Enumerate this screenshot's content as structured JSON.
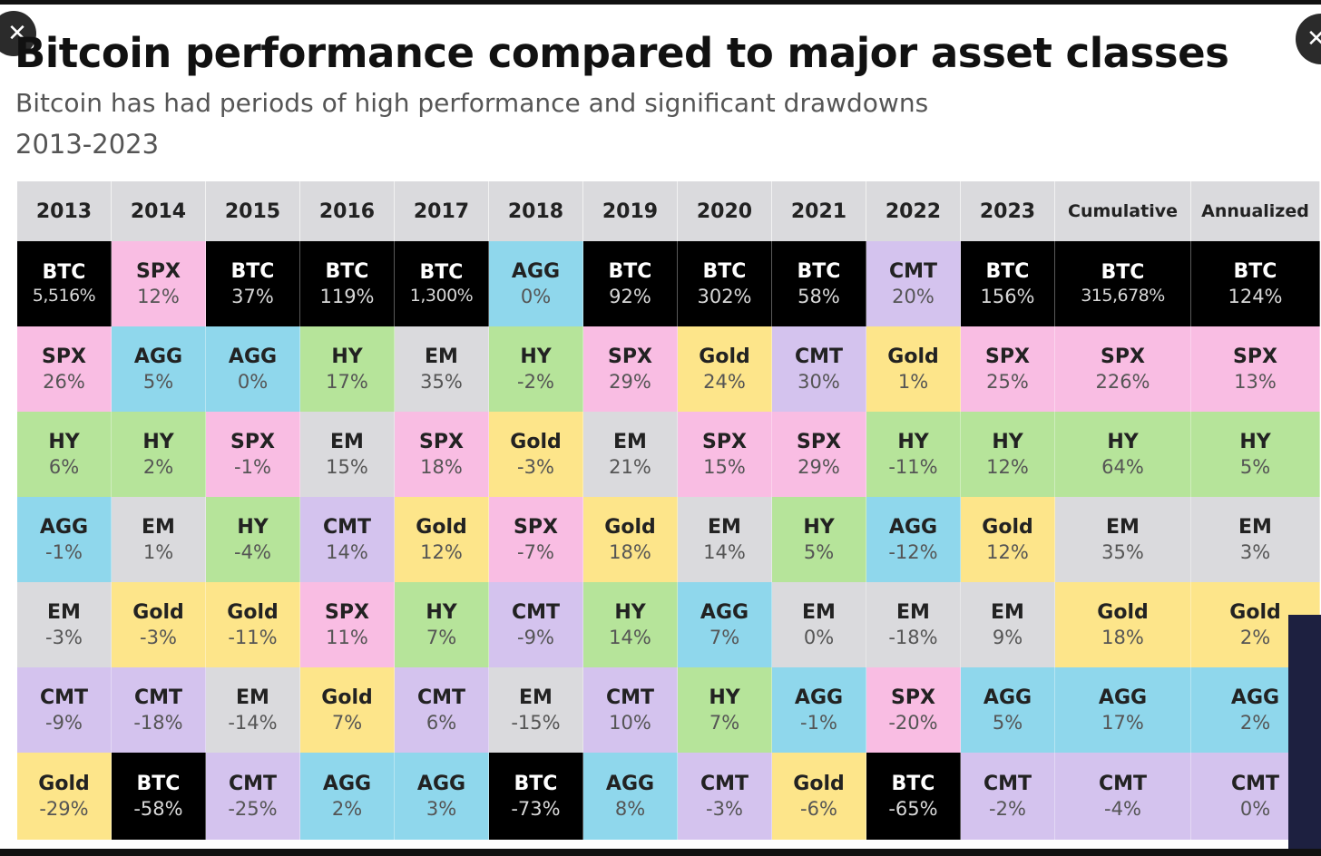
{
  "title": "Bitcoin performance compared to major asset classes",
  "subtitle": "Bitcoin has had periods of high performance and significant drawdowns",
  "date_range": "2013-2023",
  "close_glyph": "✕",
  "colors": {
    "BTC": "#000000",
    "SPX": "#f9bde3",
    "AGG": "#8fd7ec",
    "HY": "#b6e49a",
    "EM": "#dadadd",
    "CMT": "#d4c3ee",
    "Gold": "#fde58a",
    "header": "#dadadd"
  },
  "chart_data": {
    "type": "table",
    "columns": [
      "2013",
      "2014",
      "2015",
      "2016",
      "2017",
      "2018",
      "2019",
      "2020",
      "2021",
      "2022",
      "2023",
      "Cumulative",
      "Annualized"
    ],
    "ranked_cells": [
      [
        {
          "asset": "BTC",
          "return": "5,516%"
        },
        {
          "asset": "SPX",
          "return": "26%"
        },
        {
          "asset": "HY",
          "return": "6%"
        },
        {
          "asset": "AGG",
          "return": "-1%"
        },
        {
          "asset": "EM",
          "return": "-3%"
        },
        {
          "asset": "CMT",
          "return": "-9%"
        },
        {
          "asset": "Gold",
          "return": "-29%"
        }
      ],
      [
        {
          "asset": "SPX",
          "return": "12%"
        },
        {
          "asset": "AGG",
          "return": "5%"
        },
        {
          "asset": "HY",
          "return": "2%"
        },
        {
          "asset": "EM",
          "return": "1%"
        },
        {
          "asset": "Gold",
          "return": "-3%"
        },
        {
          "asset": "CMT",
          "return": "-18%"
        },
        {
          "asset": "BTC",
          "return": "-58%"
        }
      ],
      [
        {
          "asset": "BTC",
          "return": "37%"
        },
        {
          "asset": "AGG",
          "return": "0%"
        },
        {
          "asset": "SPX",
          "return": "-1%"
        },
        {
          "asset": "HY",
          "return": "-4%"
        },
        {
          "asset": "Gold",
          "return": "-11%"
        },
        {
          "asset": "EM",
          "return": "-14%"
        },
        {
          "asset": "CMT",
          "return": "-25%"
        }
      ],
      [
        {
          "asset": "BTC",
          "return": "119%"
        },
        {
          "asset": "HY",
          "return": "17%"
        },
        {
          "asset": "EM",
          "return": "15%"
        },
        {
          "asset": "CMT",
          "return": "14%"
        },
        {
          "asset": "SPX",
          "return": "11%"
        },
        {
          "asset": "Gold",
          "return": "7%"
        },
        {
          "asset": "AGG",
          "return": "2%"
        }
      ],
      [
        {
          "asset": "BTC",
          "return": "1,300%"
        },
        {
          "asset": "EM",
          "return": "35%"
        },
        {
          "asset": "SPX",
          "return": "18%"
        },
        {
          "asset": "Gold",
          "return": "12%"
        },
        {
          "asset": "HY",
          "return": "7%"
        },
        {
          "asset": "CMT",
          "return": "6%"
        },
        {
          "asset": "AGG",
          "return": "3%"
        }
      ],
      [
        {
          "asset": "AGG",
          "return": "0%"
        },
        {
          "asset": "HY",
          "return": "-2%"
        },
        {
          "asset": "Gold",
          "return": "-3%"
        },
        {
          "asset": "SPX",
          "return": "-7%"
        },
        {
          "asset": "CMT",
          "return": "-9%"
        },
        {
          "asset": "EM",
          "return": "-15%"
        },
        {
          "asset": "BTC",
          "return": "-73%"
        }
      ],
      [
        {
          "asset": "BTC",
          "return": "92%"
        },
        {
          "asset": "SPX",
          "return": "29%"
        },
        {
          "asset": "EM",
          "return": "21%"
        },
        {
          "asset": "Gold",
          "return": "18%"
        },
        {
          "asset": "HY",
          "return": "14%"
        },
        {
          "asset": "CMT",
          "return": "10%"
        },
        {
          "asset": "AGG",
          "return": "8%"
        }
      ],
      [
        {
          "asset": "BTC",
          "return": "302%"
        },
        {
          "asset": "Gold",
          "return": "24%"
        },
        {
          "asset": "SPX",
          "return": "15%"
        },
        {
          "asset": "EM",
          "return": "14%"
        },
        {
          "asset": "AGG",
          "return": "7%"
        },
        {
          "asset": "HY",
          "return": "7%"
        },
        {
          "asset": "CMT",
          "return": "-3%"
        }
      ],
      [
        {
          "asset": "BTC",
          "return": "58%"
        },
        {
          "asset": "CMT",
          "return": "30%"
        },
        {
          "asset": "SPX",
          "return": "29%"
        },
        {
          "asset": "HY",
          "return": "5%"
        },
        {
          "asset": "EM",
          "return": "0%"
        },
        {
          "asset": "AGG",
          "return": "-1%"
        },
        {
          "asset": "Gold",
          "return": "-6%"
        }
      ],
      [
        {
          "asset": "CMT",
          "return": "20%"
        },
        {
          "asset": "Gold",
          "return": "1%"
        },
        {
          "asset": "HY",
          "return": "-11%"
        },
        {
          "asset": "AGG",
          "return": "-12%"
        },
        {
          "asset": "EM",
          "return": "-18%"
        },
        {
          "asset": "SPX",
          "return": "-20%"
        },
        {
          "asset": "BTC",
          "return": "-65%"
        }
      ],
      [
        {
          "asset": "BTC",
          "return": "156%"
        },
        {
          "asset": "SPX",
          "return": "25%"
        },
        {
          "asset": "HY",
          "return": "12%"
        },
        {
          "asset": "Gold",
          "return": "12%"
        },
        {
          "asset": "EM",
          "return": "9%"
        },
        {
          "asset": "AGG",
          "return": "5%"
        },
        {
          "asset": "CMT",
          "return": "-2%"
        }
      ],
      [
        {
          "asset": "BTC",
          "return": "315,678%"
        },
        {
          "asset": "SPX",
          "return": "226%"
        },
        {
          "asset": "HY",
          "return": "64%"
        },
        {
          "asset": "EM",
          "return": "35%"
        },
        {
          "asset": "Gold",
          "return": "18%"
        },
        {
          "asset": "AGG",
          "return": "17%"
        },
        {
          "asset": "CMT",
          "return": "-4%"
        }
      ],
      [
        {
          "asset": "BTC",
          "return": "124%"
        },
        {
          "asset": "SPX",
          "return": "13%"
        },
        {
          "asset": "HY",
          "return": "5%"
        },
        {
          "asset": "EM",
          "return": "3%"
        },
        {
          "asset": "Gold",
          "return": "2%"
        },
        {
          "asset": "AGG",
          "return": "2%"
        },
        {
          "asset": "CMT",
          "return": "0%"
        }
      ]
    ]
  }
}
